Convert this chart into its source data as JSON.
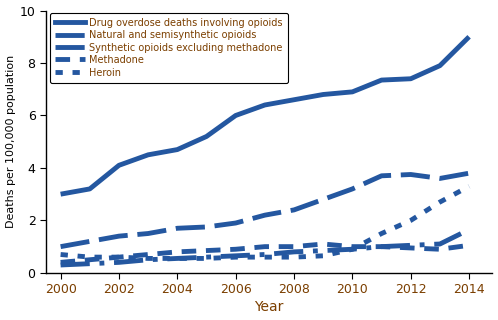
{
  "years": [
    2000,
    2001,
    2002,
    2003,
    2004,
    2005,
    2006,
    2007,
    2008,
    2009,
    2010,
    2011,
    2012,
    2013,
    2014
  ],
  "drug_overdose": [
    3.0,
    3.2,
    4.1,
    4.5,
    4.7,
    5.2,
    6.0,
    6.4,
    6.6,
    6.8,
    6.9,
    7.35,
    7.4,
    7.9,
    9.0
  ],
  "natural_semisynthetic": [
    1.0,
    1.2,
    1.4,
    1.5,
    1.7,
    1.75,
    1.9,
    2.2,
    2.4,
    2.8,
    3.2,
    3.7,
    3.75,
    3.6,
    3.8
  ],
  "synthetic_excl_methadone": [
    0.3,
    0.35,
    0.4,
    0.5,
    0.55,
    0.6,
    0.65,
    0.7,
    0.8,
    0.85,
    0.9,
    1.0,
    1.05,
    1.1,
    1.65
  ],
  "methadone": [
    0.4,
    0.5,
    0.6,
    0.7,
    0.8,
    0.85,
    0.9,
    1.0,
    1.0,
    1.1,
    1.0,
    1.0,
    0.95,
    0.9,
    1.05
  ],
  "heroin": [
    0.7,
    0.6,
    0.6,
    0.55,
    0.55,
    0.55,
    0.6,
    0.6,
    0.6,
    0.65,
    0.9,
    1.5,
    2.0,
    2.7,
    3.3
  ],
  "color": "#2457a0",
  "tick_color": "#7B3F00",
  "ylabel": "Deaths per 100,000 population",
  "xlabel": "Year",
  "ylim": [
    0,
    10
  ],
  "xlim": [
    1999.5,
    2014.8
  ],
  "yticks": [
    0,
    2,
    4,
    6,
    8,
    10
  ],
  "xticks": [
    2000,
    2002,
    2004,
    2006,
    2008,
    2010,
    2012,
    2014
  ],
  "legend_labels": [
    "Drug overdose deaths involving opioids",
    "Natural and semisynthetic opioids",
    "Synthetic opioids excluding methadone",
    "Methadone",
    "Heroin"
  ]
}
